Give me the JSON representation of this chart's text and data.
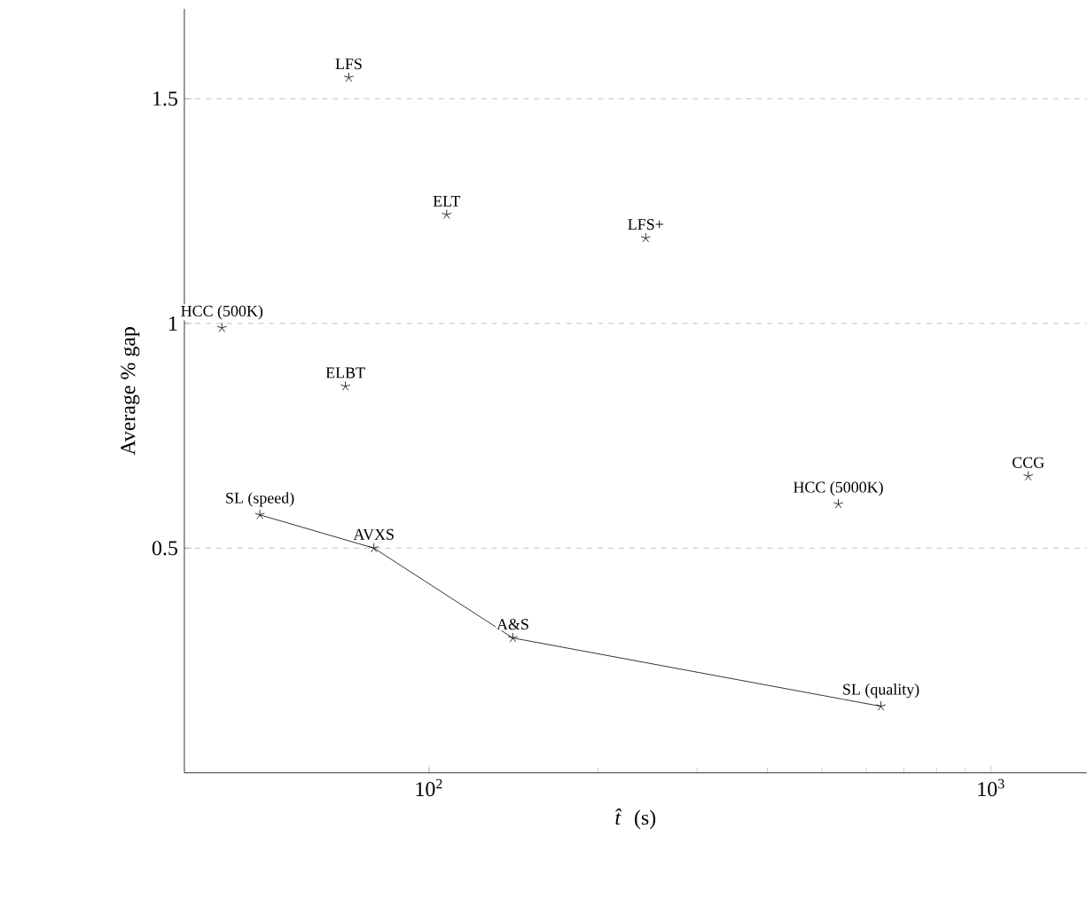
{
  "chart_data": {
    "type": "scatter",
    "xlabel": "*t̂* (s)",
    "ylabel": "Average % gap",
    "log": "x",
    "grid": "y",
    "marker": "cross",
    "xlim": [
      36.7,
      1480
    ],
    "ylim": [
      0,
      1.7
    ],
    "xticks": [
      {
        "value": 100,
        "label": "10$^{2}$"
      },
      {
        "value": 1000,
        "label": "10$^{3}$"
      }
    ],
    "yticks": [
      0.5,
      1,
      1.5
    ],
    "series": [
      {
        "type": "scatter",
        "color": "#000000",
        "x": [
          72,
          107.5,
          243,
          42.8,
          71,
          535,
          1165
        ],
        "values": [
          1.547,
          1.242,
          1.19,
          0.99,
          0.86,
          0.598,
          0.66
        ]
      },
      {
        "type": "line",
        "color": "#000000",
        "x": [
          50,
          79.8,
          141,
          637
        ],
        "values": [
          0.574,
          0.5,
          0.3,
          0.148
        ]
      }
    ],
    "annotations": [
      {
        "text": "LFS",
        "x": 72,
        "y": 1.547
      },
      {
        "text": "ELT",
        "x": 107.5,
        "y": 1.242
      },
      {
        "text": "LFS+",
        "x": 243,
        "y": 1.19
      },
      {
        "text": "HCC (500K)",
        "x": 42.8,
        "y": 0.99
      },
      {
        "text": "ELBT",
        "x": 71,
        "y": 0.86
      },
      {
        "text": "HCC (5000K)",
        "x": 535,
        "y": 0.598
      },
      {
        "text": "CCG",
        "x": 1165,
        "y": 0.66
      },
      {
        "text": "SL (speed)",
        "x": 50,
        "y": 0.574
      },
      {
        "text": "AVXS",
        "x": 79.8,
        "y": 0.5
      },
      {
        "text": "A&S",
        "x": 141,
        "y": 0.3
      },
      {
        "text": "SL (quality)",
        "x": 637,
        "y": 0.148
      }
    ]
  }
}
